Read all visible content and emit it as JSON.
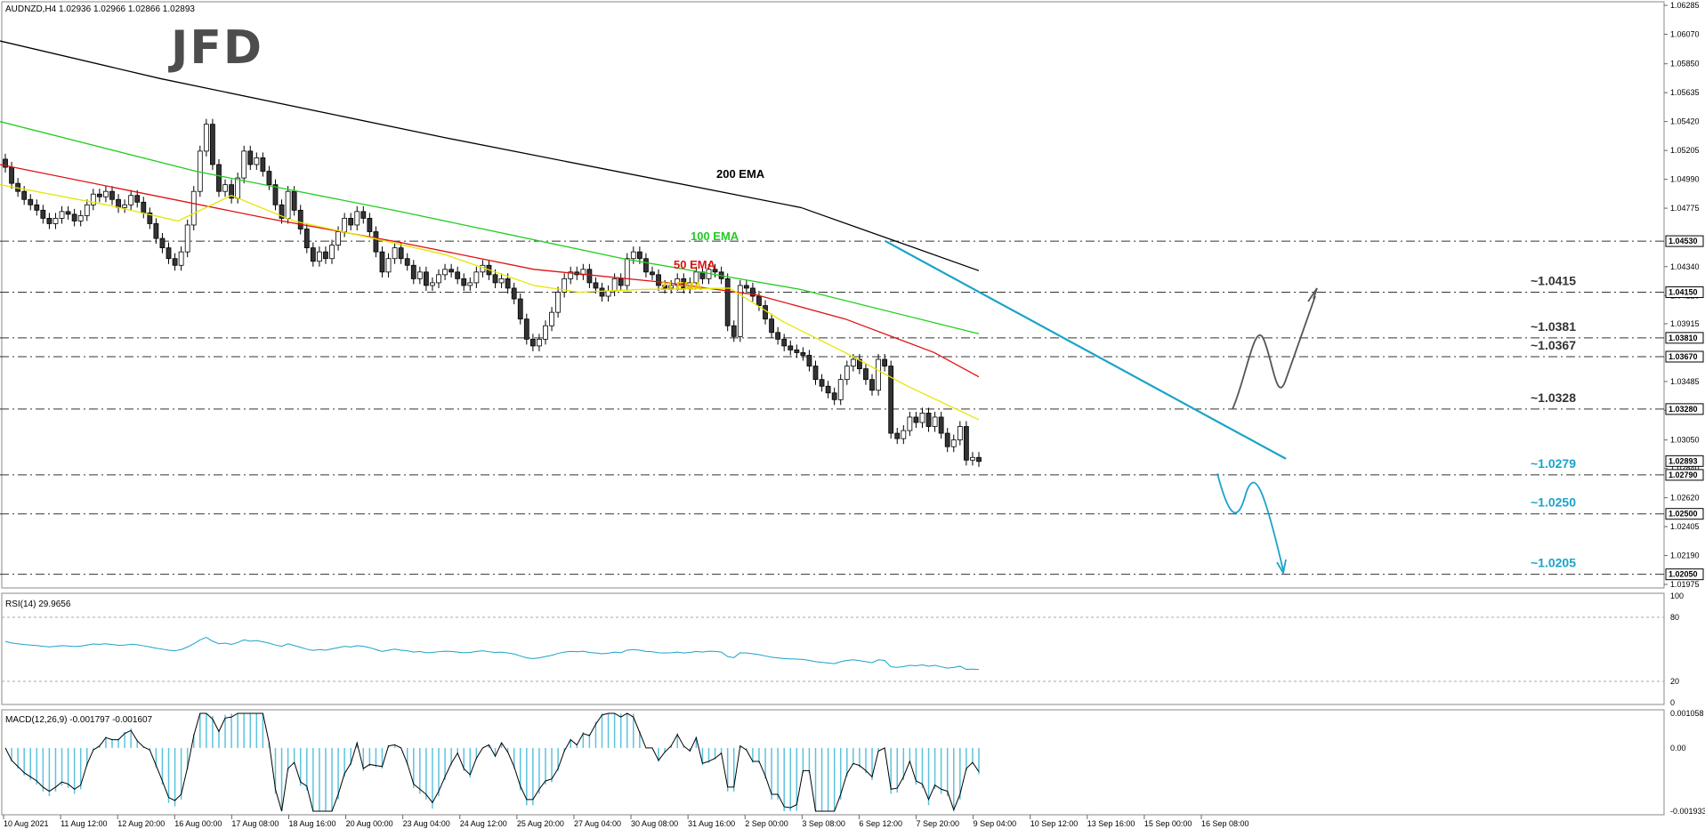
{
  "logo": {
    "text": "JFD"
  },
  "header": {
    "symbol": "AUDNZD,H4",
    "ohlc": "1.02936 1.02966 1.02866 1.02893"
  },
  "chart_data": {
    "type": "candlestick",
    "title": "AUDNZD,H4 1.02936 1.02966 1.02866 1.02893",
    "price_axis": {
      "labels": [
        "1.06285",
        "1.06070",
        "1.05850",
        "1.05635",
        "1.05420",
        "1.05205",
        "1.04990",
        "1.04775",
        "1.04340",
        "1.04125",
        "1.03915",
        "1.03485",
        "1.03270",
        "1.03050",
        "1.02840",
        "1.02620",
        "1.02405",
        "1.02190",
        "1.01975"
      ],
      "ylim": [
        1.01975,
        1.06285
      ]
    },
    "highlight_labels": [
      "1.04530",
      "1.04150",
      "1.03810",
      "1.03670",
      "1.03280",
      "1.02893",
      "1.02790",
      "1.02500",
      "1.02050"
    ],
    "time_axis": [
      "10 Aug 2021",
      "11 Aug 12:00",
      "12 Aug 20:00",
      "16 Aug 00:00",
      "17 Aug 08:00",
      "18 Aug 16:00",
      "20 Aug 00:00",
      "23 Aug 04:00",
      "24 Aug 12:00",
      "25 Aug 20:00",
      "27 Aug 04:00",
      "30 Aug 08:00",
      "31 Aug 16:00",
      "2 Sep 00:00",
      "3 Sep 08:00",
      "6 Sep 12:00",
      "7 Sep 20:00",
      "9 Sep 04:00",
      "10 Sep 12:00",
      "13 Sep 16:00",
      "15 Sep 00:00",
      "16 Sep 08:00"
    ],
    "levels": [
      {
        "price": 1.0453,
        "label": ""
      },
      {
        "price": 1.0415,
        "label": "~1.0415",
        "color": "#333333"
      },
      {
        "price": 1.0381,
        "label": "~1.0381",
        "color": "#333333"
      },
      {
        "price": 1.0367,
        "label": "~1.0367",
        "color": "#333333"
      },
      {
        "price": 1.0328,
        "label": "~1.0328",
        "color": "#333333"
      },
      {
        "price": 1.0279,
        "label": "~1.0279",
        "color": "#1aa3c9"
      },
      {
        "price": 1.025,
        "label": "~1.0250",
        "color": "#1aa3c9"
      },
      {
        "price": 1.0205,
        "label": "~1.0205",
        "color": "#1aa3c9"
      }
    ],
    "indicators": [
      {
        "name": "200 EMA",
        "color": "#000000",
        "points": [
          [
            0,
            1.0602
          ],
          [
            180,
            1.0574
          ],
          [
            500,
            1.053
          ],
          [
            900,
            1.0478
          ],
          [
            1100,
            1.0431
          ]
        ]
      },
      {
        "name": "100 EMA",
        "color": "#22cc22",
        "points": [
          [
            0,
            1.0542
          ],
          [
            220,
            1.0505
          ],
          [
            450,
            1.0475
          ],
          [
            700,
            1.044
          ],
          [
            900,
            1.0417
          ],
          [
            1100,
            1.0384
          ]
        ]
      },
      {
        "name": "50 EMA",
        "color": "#e01010",
        "points": [
          [
            0,
            1.051
          ],
          [
            150,
            1.049
          ],
          [
            300,
            1.047
          ],
          [
            450,
            1.0452
          ],
          [
            600,
            1.0432
          ],
          [
            750,
            1.0422
          ],
          [
            850,
            1.0413
          ],
          [
            950,
            1.0395
          ],
          [
            1050,
            1.037
          ],
          [
            1100,
            1.0352
          ]
        ]
      },
      {
        "name": "21 EMA",
        "color": "#e6e600",
        "points": [
          [
            0,
            1.0495
          ],
          [
            120,
            1.048
          ],
          [
            200,
            1.0468
          ],
          [
            260,
            1.0487
          ],
          [
            330,
            1.0468
          ],
          [
            420,
            1.0455
          ],
          [
            500,
            1.0443
          ],
          [
            600,
            1.042
          ],
          [
            650,
            1.0415
          ],
          [
            720,
            1.0417
          ],
          [
            820,
            1.0418
          ],
          [
            880,
            1.0393
          ],
          [
            950,
            1.037
          ],
          [
            1020,
            1.0345
          ],
          [
            1100,
            1.032
          ]
        ]
      }
    ],
    "annotation_labels": {
      "ema200": "200 EMA",
      "ema100": "100 EMA",
      "ema50": "50 EMA",
      "ema21": "21 EMA"
    },
    "candles_close": [
      1.0508,
      1.0496,
      1.049,
      1.0484,
      1.048,
      1.0476,
      1.047,
      1.0466,
      1.047,
      1.0475,
      1.0473,
      1.0468,
      1.0472,
      1.048,
      1.0488,
      1.0486,
      1.049,
      1.0484,
      1.0478,
      1.048,
      1.0487,
      1.0482,
      1.0474,
      1.0466,
      1.0455,
      1.0448,
      1.044,
      1.0435,
      1.0445,
      1.0465,
      1.049,
      1.052,
      1.054,
      1.051,
      1.049,
      1.0495,
      1.0485,
      1.05,
      1.052,
      1.051,
      1.0515,
      1.0505,
      1.0495,
      1.048,
      1.047,
      1.049,
      1.0476,
      1.0462,
      1.0448,
      1.0438,
      1.0445,
      1.044,
      1.045,
      1.046,
      1.047,
      1.0465,
      1.0475,
      1.047,
      1.046,
      1.0445,
      1.043,
      1.044,
      1.0448,
      1.044,
      1.0435,
      1.0425,
      1.043,
      1.042,
      1.0422,
      1.0428,
      1.0432,
      1.043,
      1.0425,
      1.042,
      1.0422,
      1.043,
      1.0435,
      1.0428,
      1.0422,
      1.0425,
      1.0418,
      1.041,
      1.0395,
      1.038,
      1.0375,
      1.038,
      1.039,
      1.04,
      1.0415,
      1.0425,
      1.043,
      1.0428,
      1.0432,
      1.0422,
      1.0418,
      1.0412,
      1.0416,
      1.0425,
      1.042,
      1.044,
      1.0445,
      1.044,
      1.043,
      1.0428,
      1.042,
      1.0418,
      1.042,
      1.0425,
      1.0418,
      1.0422,
      1.043,
      1.0425,
      1.0432,
      1.043,
      1.0425,
      1.039,
      1.0382,
      1.042,
      1.0418,
      1.0412,
      1.0405,
      1.0395,
      1.0385,
      1.038,
      1.0375,
      1.0372,
      1.037,
      1.0368,
      1.036,
      1.035,
      1.0345,
      1.034,
      1.0335,
      1.035,
      1.036,
      1.0365,
      1.0358,
      1.035,
      1.0342,
      1.0365,
      1.036,
      1.031,
      1.0306,
      1.0312,
      1.0322,
      1.0318,
      1.0325,
      1.0315,
      1.0322,
      1.031,
      1.03,
      1.0305,
      1.0315,
      1.029,
      1.0292,
      1.0289
    ],
    "rsi": {
      "label": "RSI(14) 29.9656",
      "levels": [
        80,
        20
      ],
      "ylim": [
        0,
        100
      ],
      "tick_labels": [
        "100",
        "80",
        "20",
        "0"
      ]
    },
    "macd": {
      "label": "MACD(12,26,9) -0.001797 -0.001607",
      "tick_labels": [
        "0.001058",
        "0.00",
        "-0.001933"
      ],
      "ylim": [
        -0.001933,
        0.001058
      ]
    }
  }
}
